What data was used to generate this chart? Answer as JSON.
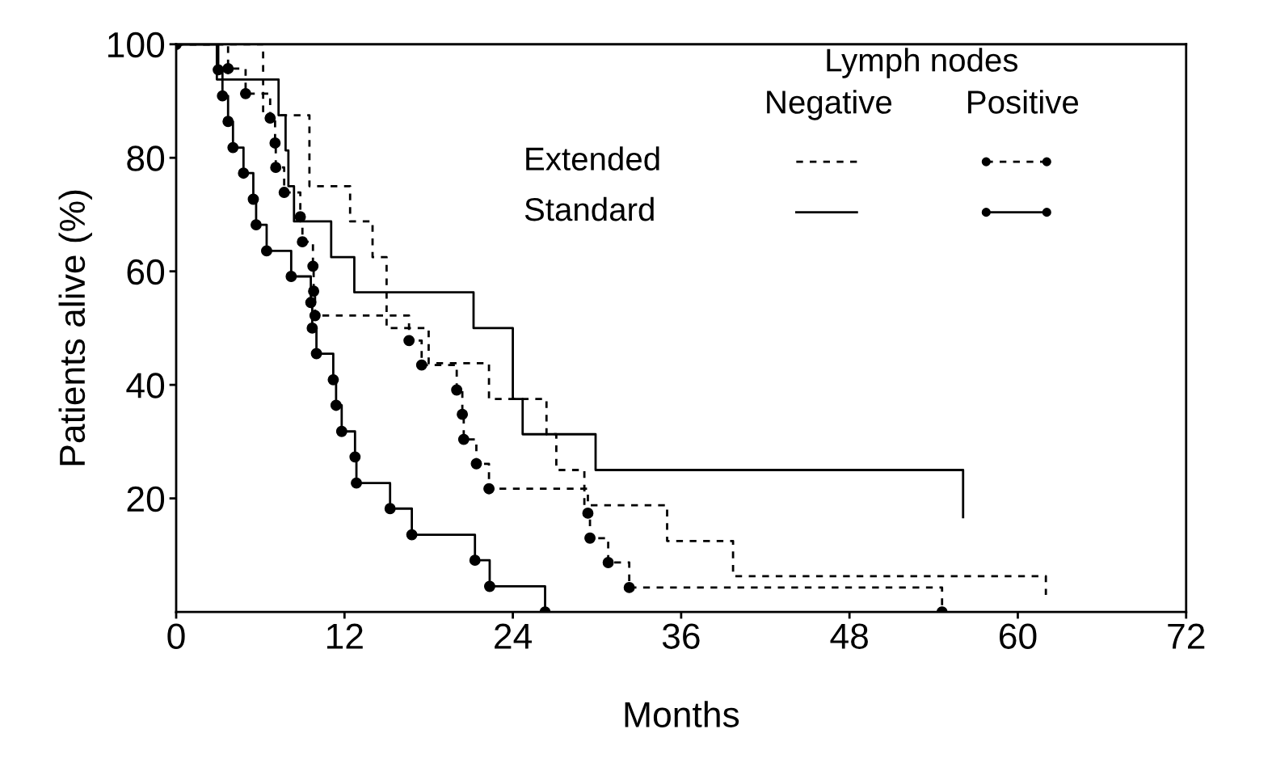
{
  "chart_data": {
    "type": "step",
    "xlabel": "Months",
    "ylabel": "Patients alive (%)",
    "xlim": [
      0,
      72
    ],
    "xticks": [
      0,
      12,
      24,
      36,
      48,
      60,
      72
    ],
    "ylim": [
      0,
      100
    ],
    "yticks": [
      20,
      40,
      60,
      80,
      100
    ],
    "grid": false,
    "annotations": [
      "Lymph nodes",
      "Negative",
      "Positive",
      "Extended",
      "Standard"
    ],
    "series": [
      {
        "color": "#000000",
        "line_style": "dashed",
        "marker": "none",
        "x": [
          0,
          6.2,
          9.5,
          12.4,
          14.0,
          15.0,
          18.0,
          22.3,
          26.4,
          27.1,
          29.1,
          35.0,
          39.7,
          62.0
        ],
        "values": [
          100,
          87.5,
          75,
          68.8,
          62.5,
          50,
          43.8,
          37.5,
          31.3,
          25,
          18.8,
          12.5,
          6.3,
          3
        ]
      },
      {
        "color": "#000000",
        "line_style": "dashed",
        "marker": "circle",
        "x": [
          0,
          3.7,
          4.95,
          6.7,
          7.05,
          7.1,
          7.7,
          8.85,
          9.0,
          9.75,
          9.8,
          9.9,
          16.6,
          17.5,
          20.0,
          20.4,
          20.5,
          21.4,
          22.3,
          29.35,
          29.5,
          30.8,
          32.3,
          54.6
        ],
        "values": [
          100,
          95.7,
          91.3,
          87,
          82.6,
          78.3,
          73.9,
          69.6,
          65.2,
          60.9,
          56.5,
          52.2,
          47.8,
          43.5,
          39.1,
          34.8,
          30.4,
          26.1,
          21.7,
          17.4,
          13,
          8.7,
          4.3,
          0
        ]
      },
      {
        "color": "#000000",
        "line_style": "solid",
        "marker": "none",
        "x": [
          0,
          2.9,
          7.3,
          7.8,
          8.0,
          8.4,
          11.05,
          12.7,
          21.2,
          24.0,
          24.7,
          29.9,
          56.1
        ],
        "values": [
          100,
          93.8,
          87.5,
          81.3,
          75,
          68.8,
          62.5,
          56.3,
          50,
          37.5,
          31.3,
          25,
          16.7
        ]
      },
      {
        "color": "#000000",
        "line_style": "solid",
        "marker": "circle",
        "x": [
          0,
          3.0,
          3.3,
          3.7,
          4.05,
          4.8,
          5.5,
          5.7,
          6.45,
          8.2,
          9.6,
          9.7,
          10.0,
          11.2,
          11.4,
          11.8,
          12.75,
          12.85,
          15.25,
          16.8,
          21.3,
          22.35,
          26.3
        ],
        "values": [
          100,
          95.5,
          90.9,
          86.4,
          81.8,
          77.3,
          72.7,
          68.2,
          63.6,
          59.1,
          54.5,
          50,
          45.5,
          40.9,
          36.4,
          31.8,
          27.3,
          22.7,
          18.2,
          13.6,
          9.1,
          4.5,
          0
        ]
      }
    ]
  }
}
